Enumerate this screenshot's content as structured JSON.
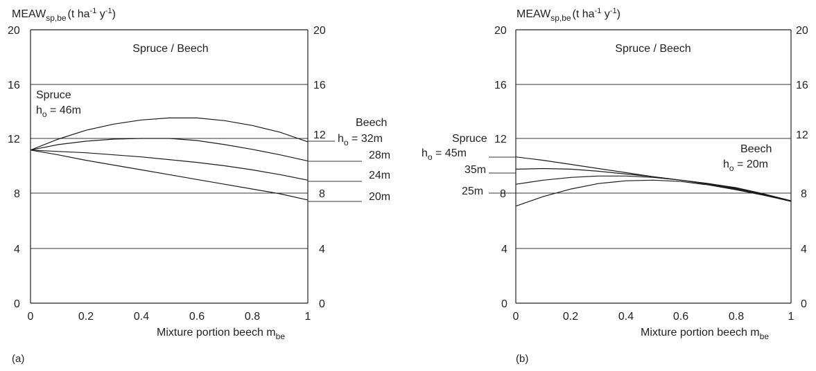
{
  "chart_data": [
    {
      "type": "line",
      "panel_label": "(a)",
      "ylabel_main": "MEAW",
      "ylabel_sub": "sp,be",
      "ylabel_unit_a": "(t ha",
      "ylabel_sup1": "-1",
      "ylabel_unit_b": " y",
      "ylabel_sup2": "-1",
      "ylabel_close": ")",
      "xlabel_main": "Mixture portion beech m",
      "xlabel_sub": "be",
      "title": "Spruce / Beech",
      "x_ticks": [
        "0",
        "0.2",
        "0.4",
        "0.6",
        "0.8",
        "1"
      ],
      "y_ticks": [
        "0",
        "4",
        "8",
        "12",
        "16",
        "20"
      ],
      "xlim": [
        0,
        1
      ],
      "ylim": [
        0,
        20
      ],
      "grid_y": [
        4,
        8,
        12,
        16
      ],
      "annotations": {
        "left_species": "Spruce",
        "left_height_h": "h",
        "left_height_sub": "o",
        "left_height_val": " = 46m",
        "right_species": "Beech",
        "right_height_h": "h",
        "right_height_sub": "o",
        "right_height_val": " = 32m",
        "right_labels": [
          "28m",
          "24m",
          "20m"
        ]
      },
      "series": [
        {
          "x": [
            0,
            0.1,
            0.2,
            0.3,
            0.4,
            0.5,
            0.6,
            0.7,
            0.8,
            0.9,
            1.0
          ],
          "y": [
            11.2,
            12.0,
            12.65,
            13.1,
            13.4,
            13.55,
            13.55,
            13.35,
            13.0,
            12.5,
            11.8
          ]
        },
        {
          "x": [
            0,
            0.1,
            0.2,
            0.3,
            0.4,
            0.5,
            0.6,
            0.7,
            0.8,
            0.9,
            1.0
          ],
          "y": [
            11.2,
            11.6,
            11.85,
            12.0,
            12.05,
            12.05,
            11.9,
            11.6,
            11.25,
            10.85,
            10.4
          ]
        },
        {
          "x": [
            0,
            0.1,
            0.2,
            0.3,
            0.4,
            0.5,
            0.6,
            0.7,
            0.8,
            0.9,
            1.0
          ],
          "y": [
            11.2,
            11.1,
            11.0,
            10.85,
            10.7,
            10.5,
            10.3,
            10.05,
            9.75,
            9.4,
            9.0
          ]
        },
        {
          "x": [
            0,
            0.1,
            0.2,
            0.3,
            0.4,
            0.5,
            0.6,
            0.7,
            0.8,
            0.9,
            1.0
          ],
          "y": [
            11.2,
            10.85,
            10.45,
            10.1,
            9.75,
            9.4,
            9.05,
            8.7,
            8.35,
            8.0,
            7.55
          ]
        }
      ]
    },
    {
      "type": "line",
      "panel_label": "(b)",
      "ylabel_main": "MEAW",
      "ylabel_sub": "sp,be",
      "ylabel_unit_a": "(t ha",
      "ylabel_sup1": "-1",
      "ylabel_unit_b": " y",
      "ylabel_sup2": "-1",
      "ylabel_close": ")",
      "xlabel_main": "Mixture portion beech m",
      "xlabel_sub": "be",
      "title": "Spruce / Beech",
      "x_ticks": [
        "0",
        "0.2",
        "0.4",
        "0.6",
        "0.8",
        "1"
      ],
      "y_ticks": [
        "0",
        "4",
        "8",
        "12",
        "16",
        "20"
      ],
      "xlim": [
        0,
        1
      ],
      "ylim": [
        0,
        20
      ],
      "grid_y": [
        4,
        8,
        12,
        16
      ],
      "annotations": {
        "left_species": "Spruce",
        "left_height_h": "h",
        "left_height_sub": "o",
        "left_height_val": " = 45m",
        "left_labels": [
          "35m",
          "25m"
        ],
        "right_species": "Beech",
        "right_height_h": "h",
        "right_height_sub": "o",
        "right_height_val": " = 20m"
      },
      "series": [
        {
          "x": [
            0,
            0.1,
            0.2,
            0.3,
            0.4,
            0.5,
            0.6,
            0.7,
            0.8,
            0.9,
            1.0
          ],
          "y": [
            10.7,
            10.45,
            10.15,
            9.85,
            9.55,
            9.25,
            9.0,
            8.75,
            8.45,
            8.0,
            7.5
          ]
        },
        {
          "x": [
            0,
            0.1,
            0.2,
            0.3,
            0.4,
            0.5,
            0.6,
            0.7,
            0.8,
            0.9,
            1.0
          ],
          "y": [
            9.8,
            9.85,
            9.8,
            9.65,
            9.45,
            9.25,
            9.0,
            8.75,
            8.4,
            7.95,
            7.45
          ]
        },
        {
          "x": [
            0,
            0.1,
            0.2,
            0.3,
            0.4,
            0.5,
            0.6,
            0.7,
            0.8,
            0.9,
            1.0
          ],
          "y": [
            8.7,
            9.0,
            9.2,
            9.3,
            9.3,
            9.2,
            9.0,
            8.7,
            8.35,
            7.95,
            7.45
          ]
        },
        {
          "x": [
            0,
            0.1,
            0.2,
            0.3,
            0.4,
            0.5,
            0.6,
            0.7,
            0.8,
            0.9,
            1.0
          ],
          "y": [
            7.1,
            7.8,
            8.35,
            8.75,
            8.95,
            9.0,
            8.9,
            8.65,
            8.3,
            7.9,
            7.45
          ]
        }
      ]
    }
  ]
}
